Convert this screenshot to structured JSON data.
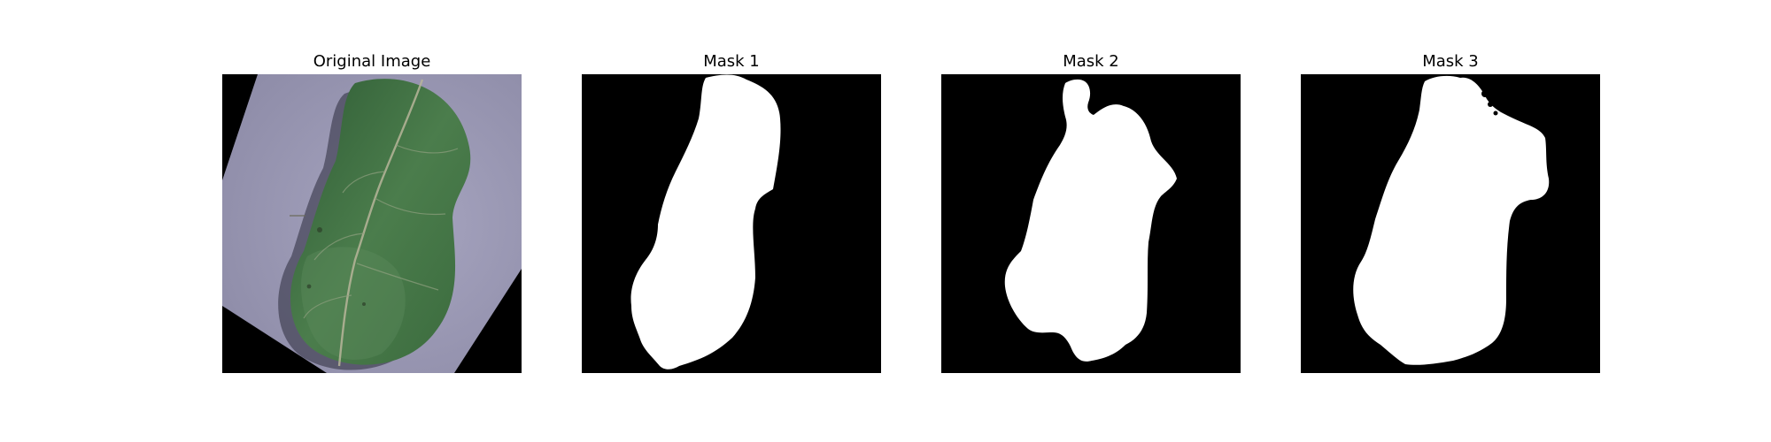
{
  "figure": {
    "panels": [
      {
        "title": "Original Image"
      },
      {
        "title": "Mask 1"
      },
      {
        "title": "Mask 2"
      },
      {
        "title": "Mask 3"
      }
    ]
  },
  "colors": {
    "background": "#ffffff",
    "mask_background": "#000000",
    "mask_foreground": "#ffffff",
    "paper": "#9a98b4",
    "leaf": "#3f6e41",
    "leaf_highlight": "#5b8a5a",
    "vein": "#b7b59a"
  }
}
